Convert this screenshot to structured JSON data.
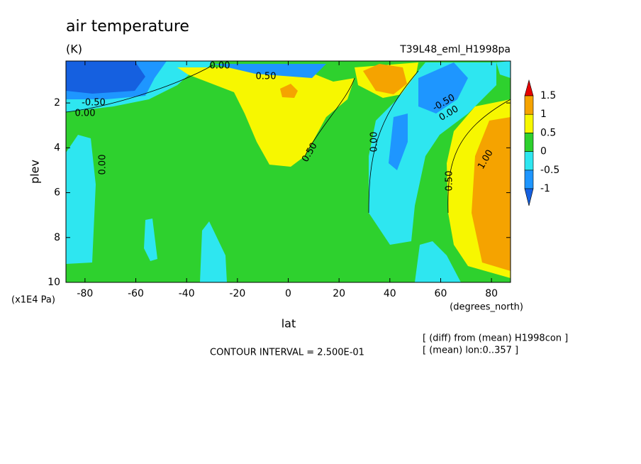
{
  "chart_data": {
    "type": "contour",
    "title": "air temperature",
    "units": "(K)",
    "experiment": "T39L48_eml_H1998pa",
    "x_label": "lat",
    "x_units": "(degrees_north)",
    "y_label": "plev",
    "y_units": "(x1E4 Pa)",
    "xlim": [
      -87.5,
      87.5
    ],
    "xticks": [
      -80,
      -60,
      -40,
      -20,
      0,
      20,
      40,
      60,
      80
    ],
    "ylim": [
      10,
      0.13
    ],
    "yticks": [
      2,
      4,
      6,
      8,
      10
    ],
    "contour_interval": "CONTOUR INTERVAL = 2.500E-01",
    "notes": [
      "[ (diff) from (mean) H1998con ]",
      "[ (mean) lon:0..357 ]"
    ],
    "colorbar": {
      "levels": [
        -1,
        -0.5,
        0,
        0.5,
        1,
        1.5
      ],
      "colors": [
        "#1560e0",
        "#1e96ff",
        "#2ee6f0",
        "#2ed12e",
        "#f7f700",
        "#f5a300",
        "#e60000"
      ]
    },
    "contour_labels": [
      "0.00",
      "0.50",
      "-0.50",
      "0.00",
      "0.00",
      "0.50",
      "0.00",
      "-0.50",
      "0.00",
      "0.50",
      "1.00"
    ]
  }
}
